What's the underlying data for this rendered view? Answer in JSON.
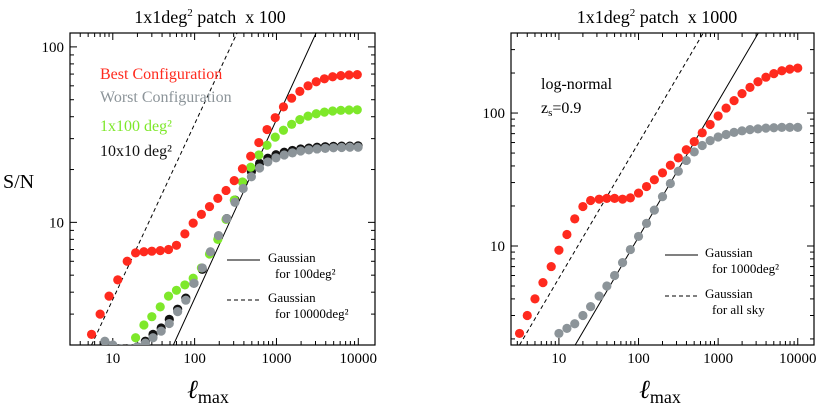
{
  "chart_data": [
    {
      "type": "scatter",
      "title": "1x1deg² patch  x 100",
      "title_parts": {
        "main": "1x1deg",
        "sup": "2",
        "rest": " patch  x 100"
      },
      "xlabel": "ℓmax",
      "xlabel_parts": {
        "main": "ℓ",
        "sub": "max"
      },
      "ylabel": "S/N",
      "xscale": "log",
      "yscale": "log",
      "xlim": [
        3,
        16000
      ],
      "ylim": [
        2,
        120
      ],
      "xticks": [
        10,
        100,
        1000,
        10000
      ],
      "xtick_labels": [
        "10",
        "100",
        "1000",
        "10000"
      ],
      "yticks": [
        10,
        100
      ],
      "ytick_labels": [
        "10",
        "100"
      ],
      "legend_dots": [
        {
          "label": "Best Configuration",
          "color": "#ff2a1e"
        },
        {
          "label": "Worst Configuration",
          "color": "#8c9499"
        },
        {
          "label": "1x100 deg²",
          "color": "#7ee82a"
        },
        {
          "label": "10x10 deg²",
          "color": "#111111"
        }
      ],
      "legend_lines": [
        {
          "style": "solid",
          "line1": "Gaussian",
          "line2": "for 100deg²"
        },
        {
          "style": "dashed",
          "line1": "Gaussian",
          "line2": "for 10000deg²"
        }
      ],
      "series": [
        {
          "name": "Best Configuration",
          "color": "#ff2a1e",
          "x": [
            5.5,
            7,
            9,
            11.5,
            15,
            19,
            24,
            30,
            38,
            48,
            60,
            76,
            96,
            121,
            152,
            192,
            242,
            305,
            384,
            484,
            609,
            767,
            966,
            1217,
            1533,
            1931,
            2432,
            3063,
            3858,
            4860,
            6122,
            7711,
            9712
          ],
          "y": [
            2.3,
            3.0,
            3.8,
            4.7,
            6.0,
            6.7,
            6.8,
            6.85,
            6.9,
            7.0,
            7.4,
            8.6,
            9.9,
            11.1,
            12.3,
            13.7,
            15.2,
            17.3,
            20.2,
            23.8,
            28.5,
            33.8,
            39.5,
            45.5,
            51.0,
            55.8,
            60.0,
            63.3,
            65.8,
            67.6,
            68.6,
            69.2,
            69.5
          ]
        },
        {
          "name": "Worst Configuration",
          "color": "#8c9499",
          "x": [
            8,
            10,
            12.5,
            16,
            20,
            25,
            31,
            39,
            49,
            62,
            78,
            98,
            124,
            156,
            196,
            247,
            311,
            392,
            494,
            622,
            784,
            987,
            1244,
            1567,
            1974,
            2487,
            3133,
            3947,
            4972,
            6264,
            7891,
            9941
          ],
          "y": [
            2.1,
            2.0,
            1.9,
            1.9,
            1.95,
            2.05,
            2.2,
            2.4,
            2.65,
            3.1,
            3.6,
            4.5,
            5.5,
            6.8,
            8.4,
            10.5,
            13.0,
            15.6,
            18.2,
            20.4,
            22.1,
            23.3,
            24.2,
            24.9,
            25.5,
            25.9,
            26.2,
            26.4,
            26.6,
            26.7,
            26.8,
            26.8
          ]
        },
        {
          "name": "1x100 deg²",
          "color": "#7ee82a",
          "x": [
            19,
            24,
            30,
            38,
            48,
            60,
            76,
            96,
            121,
            152,
            192,
            242,
            305,
            384,
            484,
            609,
            767,
            966,
            1217,
            1533,
            1931,
            2432,
            3063,
            3858,
            4860,
            6122,
            7711,
            9712
          ],
          "y": [
            2.2,
            2.6,
            2.9,
            3.3,
            3.8,
            4.1,
            4.4,
            4.8,
            5.5,
            6.6,
            8.0,
            10.4,
            13.4,
            17.0,
            20.6,
            24.2,
            27.5,
            30.6,
            33.5,
            36.2,
            38.5,
            40.3,
            41.6,
            42.5,
            43.1,
            43.5,
            43.7,
            43.8
          ]
        },
        {
          "name": "10x10 deg²",
          "color": "#111111",
          "x": [
            8,
            10,
            12,
            15,
            20,
            25,
            31,
            39,
            49,
            62,
            78,
            98,
            124,
            156,
            196,
            247,
            311,
            392,
            494,
            622,
            784,
            987,
            1244,
            1567,
            1974,
            2487,
            3133,
            3947,
            4972,
            6264,
            7891,
            9941
          ],
          "y": [
            2.05,
            1.95,
            1.9,
            1.9,
            1.95,
            2.1,
            2.3,
            2.5,
            2.8,
            3.2,
            3.7,
            4.5,
            5.4,
            6.7,
            8.3,
            10.5,
            13.4,
            16.8,
            19.5,
            21.7,
            23.2,
            24.3,
            25.1,
            25.7,
            26.2,
            26.5,
            26.8,
            27.0,
            27.1,
            27.2,
            27.2,
            27.3
          ]
        }
      ],
      "lines": [
        {
          "name": "Gaussian for 100deg²",
          "style": "solid",
          "x": [
            55,
            3050
          ],
          "y": [
            2,
            120
          ]
        },
        {
          "name": "Gaussian for 10000deg²",
          "style": "dashed",
          "x": [
            5.5,
            330
          ],
          "y": [
            2,
            120
          ]
        }
      ]
    },
    {
      "type": "scatter",
      "title": "1x1deg² patch  x 1000",
      "title_parts": {
        "main": "1x1deg",
        "sup": "2",
        "rest": " patch  x 1000"
      },
      "xlabel": "ℓmax",
      "xlabel_parts": {
        "main": "ℓ",
        "sub": "max"
      },
      "ylabel": "",
      "xscale": "log",
      "yscale": "log",
      "xlim": [
        2.5,
        16000
      ],
      "ylim": [
        1.8,
        400
      ],
      "xticks": [
        10,
        100,
        1000,
        10000
      ],
      "xtick_labels": [
        "10",
        "100",
        "1000",
        "10000"
      ],
      "yticks": [
        10,
        100
      ],
      "ytick_labels": [
        "10",
        "100"
      ],
      "annotation": {
        "line1": "log-normal",
        "line2_main": "z",
        "line2_sub": "s",
        "line2_rest": "=0.9"
      },
      "legend_lines": [
        {
          "style": "solid",
          "line1": "Gaussian",
          "line2": "for 1000deg²"
        },
        {
          "style": "dashed",
          "line1": "Gaussian",
          "line2": "for all sky"
        }
      ],
      "series": [
        {
          "name": "Best Configuration",
          "color": "#ff2a1e",
          "x": [
            3.2,
            4,
            5,
            6.3,
            8,
            10,
            12.6,
            15.8,
            20,
            25,
            32,
            40,
            50,
            63,
            79,
            100,
            126,
            158,
            200,
            251,
            316,
            398,
            501,
            631,
            794,
            1000,
            1259,
            1585,
            1995,
            2512,
            3162,
            3981,
            5012,
            6310,
            7943,
            10000
          ],
          "y": [
            2.2,
            3.0,
            4.0,
            5.3,
            7.0,
            9.3,
            12.2,
            16.0,
            19.8,
            22.0,
            22.5,
            22.8,
            22.8,
            22.5,
            23.0,
            25.0,
            28.0,
            31.5,
            35.5,
            40.5,
            46.0,
            53.0,
            61.0,
            71.0,
            82.0,
            95.0,
            109.0,
            124.0,
            140.0,
            156.0,
            172.0,
            186.0,
            198.0,
            208.0,
            214.0,
            218.0
          ]
        },
        {
          "name": "Worst Configuration",
          "color": "#8c9499",
          "x": [
            10,
            12.6,
            15.8,
            20,
            25,
            32,
            40,
            50,
            63,
            79,
            100,
            126,
            158,
            200,
            251,
            316,
            398,
            501,
            631,
            794,
            1000,
            1259,
            1585,
            1995,
            2512,
            3162,
            3981,
            5012,
            6310,
            7943,
            10000
          ],
          "y": [
            2.2,
            2.4,
            2.6,
            3.0,
            3.5,
            4.2,
            5.0,
            6.0,
            7.5,
            9.4,
            11.8,
            14.8,
            18.6,
            23.5,
            29.5,
            36.5,
            44.0,
            51.0,
            57.0,
            62.0,
            66.0,
            69.0,
            71.5,
            73.5,
            75.0,
            76.0,
            77.0,
            77.5,
            78.0,
            78.0,
            78.0
          ]
        }
      ],
      "lines": [
        {
          "name": "Gaussian for 1000deg²",
          "style": "solid",
          "x": [
            16,
            3200
          ],
          "y": [
            1.8,
            400
          ]
        },
        {
          "name": "Gaussian for all sky",
          "style": "dashed",
          "x": [
            3.2,
            650
          ],
          "y": [
            1.8,
            400
          ]
        }
      ]
    }
  ]
}
